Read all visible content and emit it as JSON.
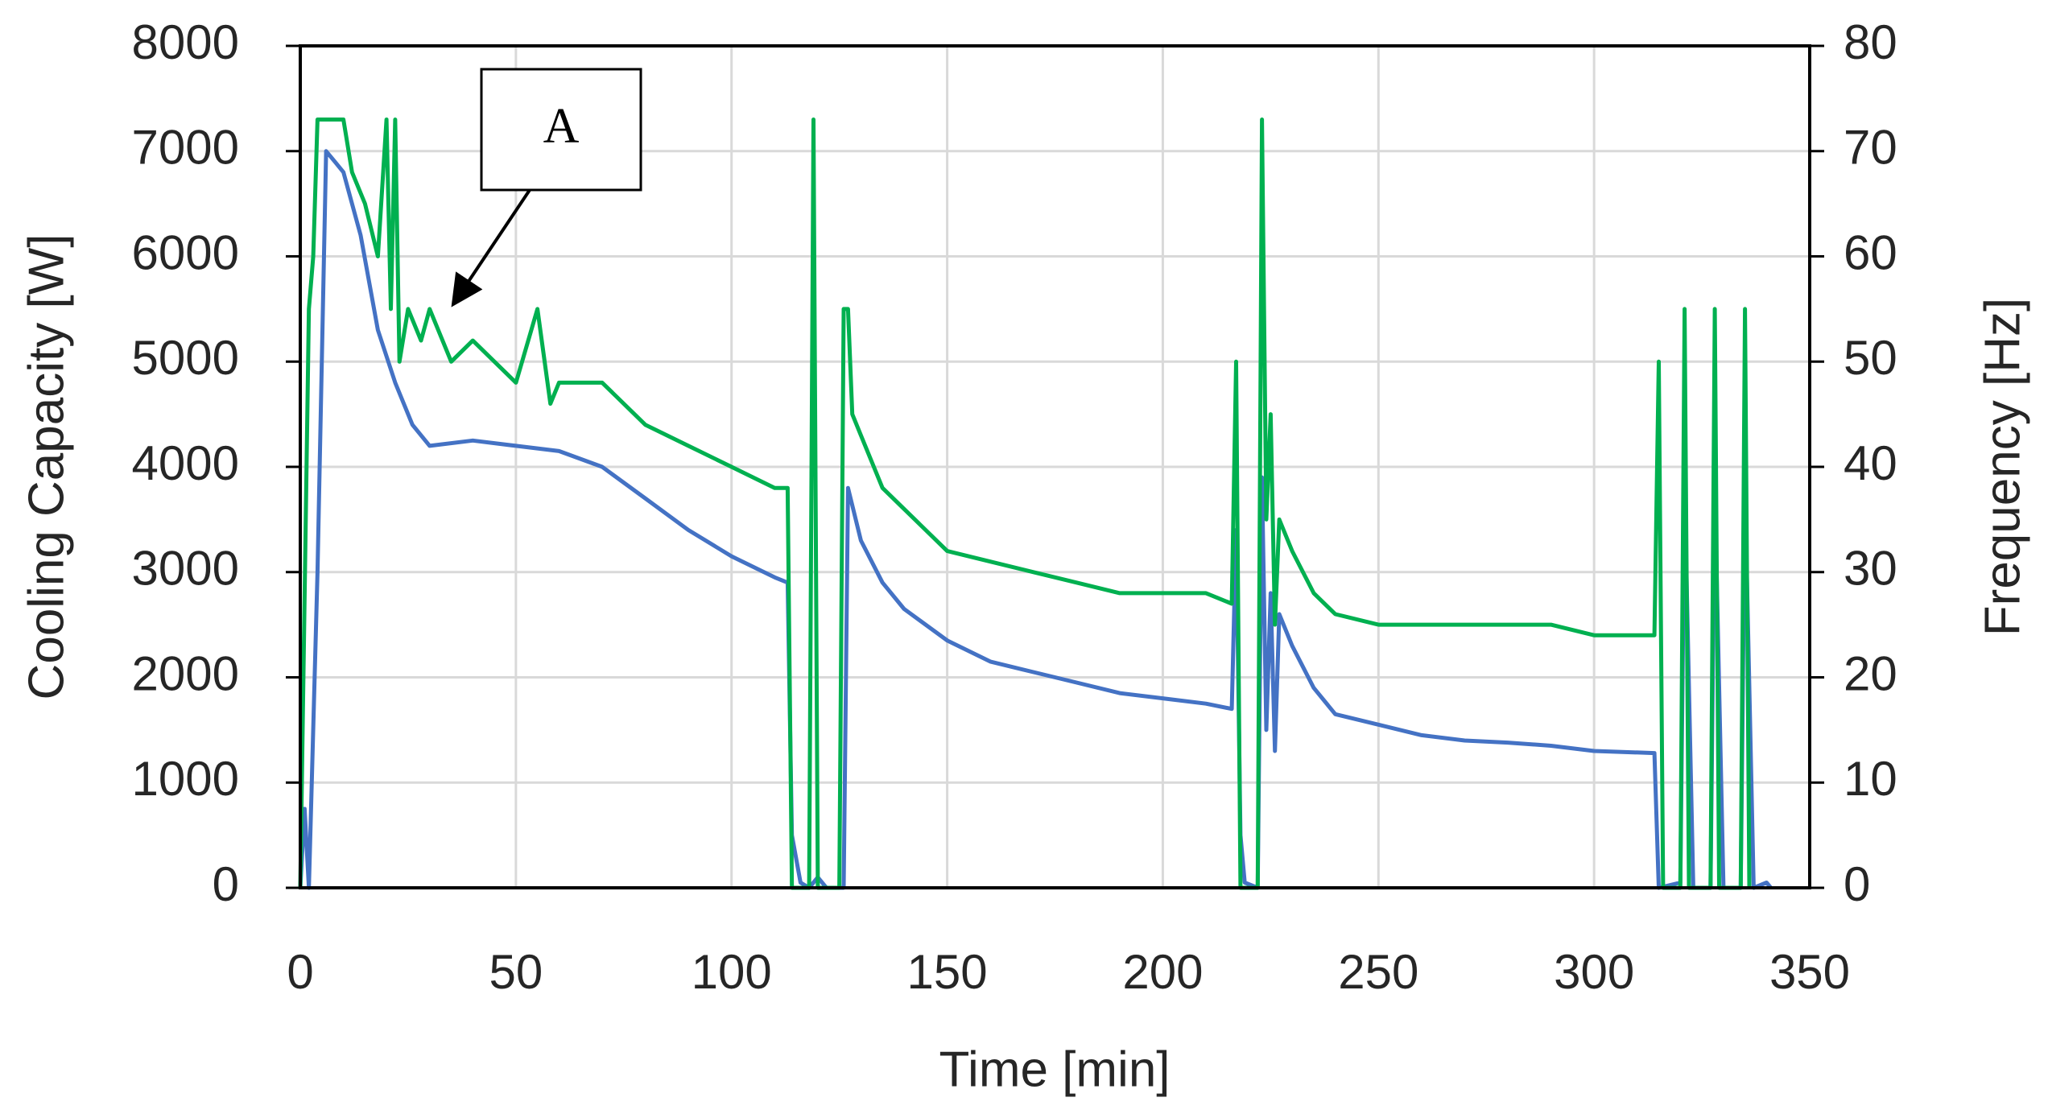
{
  "chart_data": {
    "type": "line",
    "xlabel": "Time [min]",
    "ylabel": "Cooling Capacity [W]",
    "y2label": "Frequency [Hz]",
    "annotation": "A",
    "xlim": [
      0,
      350
    ],
    "xticks": [
      0,
      50,
      100,
      150,
      200,
      250,
      300,
      350
    ],
    "ylim": [
      0,
      8000
    ],
    "yticks": [
      0,
      1000,
      2000,
      3000,
      4000,
      5000,
      6000,
      7000,
      8000
    ],
    "y2lim": [
      0,
      80
    ],
    "y2ticks": [
      0,
      10,
      20,
      30,
      40,
      50,
      60,
      70,
      80
    ],
    "grid": true,
    "series": [
      {
        "name": "Cooling Capacity",
        "color": "#4472c4",
        "x": [
          0,
          1,
          2,
          4,
          6,
          8,
          10,
          14,
          18,
          22,
          26,
          30,
          40,
          50,
          60,
          70,
          80,
          90,
          100,
          110,
          113,
          114,
          116,
          118,
          120,
          122,
          126,
          127,
          130,
          135,
          140,
          150,
          160,
          170,
          180,
          190,
          200,
          210,
          216,
          217,
          218,
          219,
          222,
          223,
          224,
          225,
          226,
          227,
          230,
          235,
          240,
          250,
          260,
          270,
          280,
          290,
          300,
          314,
          315,
          320,
          321,
          323,
          327,
          328,
          330,
          334,
          335,
          337,
          340,
          341
        ],
        "values": [
          0,
          750,
          0,
          3000,
          7000,
          6900,
          6800,
          6200,
          5300,
          4800,
          4400,
          4200,
          4250,
          4200,
          4150,
          4000,
          3700,
          3400,
          3150,
          2950,
          2900,
          500,
          50,
          0,
          100,
          0,
          0,
          3800,
          3300,
          2900,
          2650,
          2350,
          2150,
          2050,
          1950,
          1850,
          1800,
          1750,
          1700,
          3400,
          500,
          50,
          0,
          3900,
          1500,
          2800,
          1300,
          2600,
          2300,
          1900,
          1650,
          1550,
          1450,
          1400,
          1380,
          1350,
          1300,
          1280,
          0,
          50,
          3800,
          0,
          0,
          3800,
          0,
          0,
          3800,
          0,
          50,
          0
        ]
      },
      {
        "name": "Frequency",
        "color": "#00b050",
        "axis": "y2",
        "x": [
          0,
          2,
          3,
          4,
          10,
          12,
          15,
          18,
          20,
          21,
          22,
          23,
          25,
          28,
          30,
          35,
          40,
          50,
          55,
          58,
          60,
          70,
          80,
          90,
          100,
          110,
          113,
          114,
          118,
          119,
          120,
          125,
          126,
          127,
          128,
          130,
          135,
          140,
          150,
          160,
          170,
          180,
          190,
          200,
          210,
          216,
          217,
          218,
          222,
          223,
          224,
          225,
          226,
          227,
          230,
          235,
          240,
          250,
          260,
          270,
          280,
          290,
          300,
          314,
          315,
          316,
          320,
          321,
          322,
          327,
          328,
          329,
          334,
          335,
          336
        ],
        "values": [
          0,
          55,
          60,
          73,
          73,
          68,
          65,
          60,
          73,
          55,
          73,
          50,
          55,
          52,
          55,
          50,
          52,
          48,
          55,
          46,
          48,
          48,
          44,
          42,
          40,
          38,
          38,
          0,
          0,
          73,
          0,
          0,
          55,
          55,
          45,
          43,
          38,
          36,
          32,
          31,
          30,
          29,
          28,
          28,
          28,
          27,
          50,
          0,
          0,
          73,
          35,
          45,
          25,
          35,
          32,
          28,
          26,
          25,
          25,
          25,
          25,
          25,
          24,
          24,
          50,
          0,
          0,
          55,
          0,
          0,
          55,
          0,
          0,
          55,
          0
        ]
      }
    ]
  }
}
